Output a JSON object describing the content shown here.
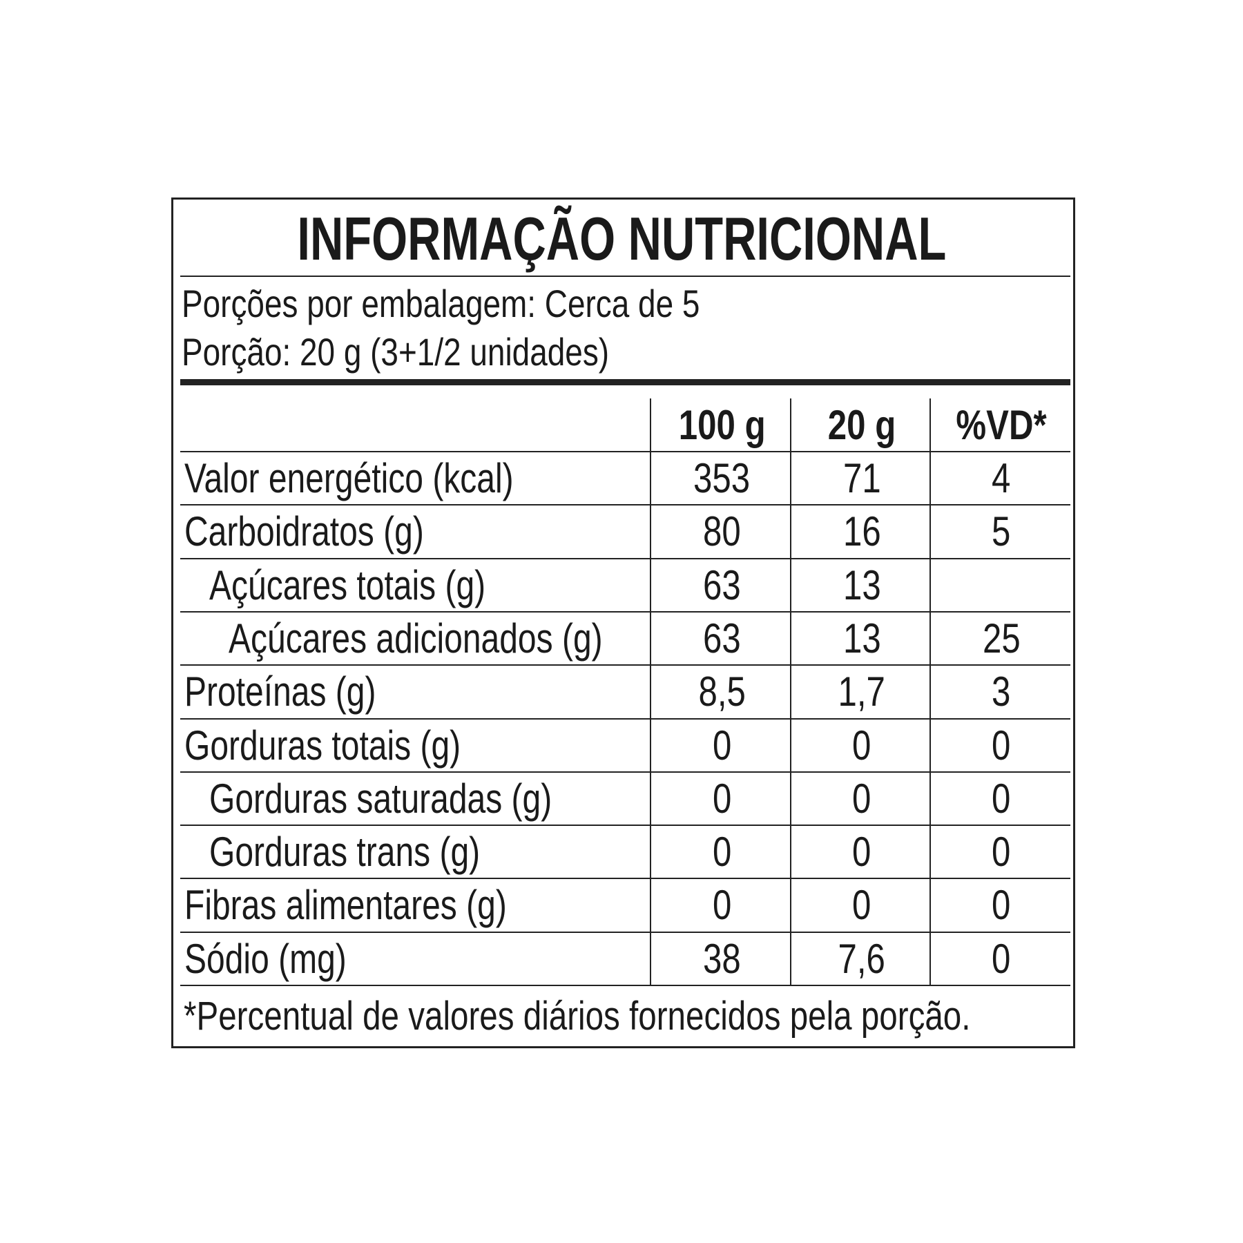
{
  "title": "INFORMAÇÃO NUTRICIONAL",
  "servings_per_package": "Porções por embalagem: Cerca de 5",
  "serving_size": "Porção: 20 g (3+1/2 unidades)",
  "columns": [
    "",
    "100 g",
    "20 g",
    "%VD*"
  ],
  "rows": [
    {
      "label": "Valor energético (kcal)",
      "indent": 0,
      "v100": "353",
      "v20": "71",
      "vd": "4"
    },
    {
      "label": "Carboidratos (g)",
      "indent": 0,
      "v100": "80",
      "v20": "16",
      "vd": "5"
    },
    {
      "label": "Açúcares totais (g)",
      "indent": 1,
      "v100": "63",
      "v20": "13",
      "vd": ""
    },
    {
      "label": "Açúcares adicionados (g)",
      "indent": 2,
      "v100": "63",
      "v20": "13",
      "vd": "25"
    },
    {
      "label": "Proteínas (g)",
      "indent": 0,
      "v100": "8,5",
      "v20": "1,7",
      "vd": "3"
    },
    {
      "label": "Gorduras totais (g)",
      "indent": 0,
      "v100": "0",
      "v20": "0",
      "vd": "0"
    },
    {
      "label": "Gorduras saturadas (g)",
      "indent": 1,
      "v100": "0",
      "v20": "0",
      "vd": "0"
    },
    {
      "label": "Gorduras trans (g)",
      "indent": 1,
      "v100": "0",
      "v20": "0",
      "vd": "0"
    },
    {
      "label": "Fibras alimentares (g)",
      "indent": 0,
      "v100": "0",
      "v20": "0",
      "vd": "0"
    },
    {
      "label": "Sódio (mg)",
      "indent": 0,
      "v100": "38",
      "v20": "7,6",
      "vd": "0"
    }
  ],
  "footnote": "*Percentual de valores diários fornecidos pela porção."
}
